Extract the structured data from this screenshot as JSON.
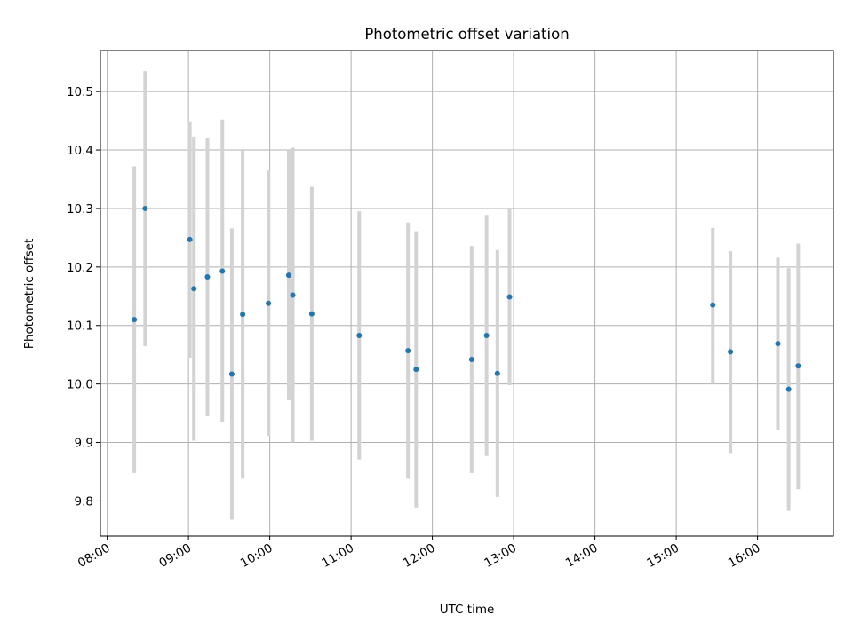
{
  "chart_data": {
    "type": "scatter",
    "title": "Photometric offset variation",
    "xlabel": "UTC time",
    "ylabel": "Photometric offset",
    "grid": true,
    "legend": "none",
    "x_ticks": [
      "08:00",
      "09:00",
      "10:00",
      "11:00",
      "12:00",
      "13:00",
      "14:00",
      "15:00",
      "16:00"
    ],
    "y_ticks": [
      "9.8",
      "9.9",
      "10.0",
      "10.1",
      "10.2",
      "10.3",
      "10.4",
      "10.5"
    ],
    "xlim": [
      "07:55",
      "16:56"
    ],
    "ylim": [
      9.74,
      10.57
    ],
    "colors": {
      "marker": "#1f77b4",
      "errorbar": "#d3d3d3",
      "grid": "#b0b0b0"
    },
    "points": [
      {
        "time": "08:20",
        "y": 10.11,
        "ylow": 9.848,
        "yhigh": 10.372
      },
      {
        "time": "08:28",
        "y": 10.3,
        "ylow": 10.065,
        "yhigh": 10.535
      },
      {
        "time": "09:01",
        "y": 10.247,
        "ylow": 10.045,
        "yhigh": 10.449
      },
      {
        "time": "09:04",
        "y": 10.163,
        "ylow": 9.903,
        "yhigh": 10.423
      },
      {
        "time": "09:14",
        "y": 10.183,
        "ylow": 9.945,
        "yhigh": 10.421
      },
      {
        "time": "09:25",
        "y": 10.193,
        "ylow": 9.934,
        "yhigh": 10.452
      },
      {
        "time": "09:32",
        "y": 10.017,
        "ylow": 9.768,
        "yhigh": 10.266
      },
      {
        "time": "09:40",
        "y": 10.119,
        "ylow": 9.838,
        "yhigh": 10.4
      },
      {
        "time": "09:59",
        "y": 10.138,
        "ylow": 9.911,
        "yhigh": 10.365
      },
      {
        "time": "10:14",
        "y": 10.186,
        "ylow": 9.972,
        "yhigh": 10.4
      },
      {
        "time": "10:17",
        "y": 10.152,
        "ylow": 9.9,
        "yhigh": 10.404
      },
      {
        "time": "10:31",
        "y": 10.12,
        "ylow": 9.903,
        "yhigh": 10.337
      },
      {
        "time": "11:06",
        "y": 10.083,
        "ylow": 9.871,
        "yhigh": 10.295
      },
      {
        "time": "11:42",
        "y": 10.057,
        "ylow": 9.838,
        "yhigh": 10.276
      },
      {
        "time": "11:48",
        "y": 10.025,
        "ylow": 9.789,
        "yhigh": 10.261
      },
      {
        "time": "12:29",
        "y": 10.042,
        "ylow": 9.848,
        "yhigh": 10.236
      },
      {
        "time": "12:40",
        "y": 10.083,
        "ylow": 9.877,
        "yhigh": 10.289
      },
      {
        "time": "12:48",
        "y": 10.018,
        "ylow": 9.807,
        "yhigh": 10.229
      },
      {
        "time": "12:57",
        "y": 10.149,
        "ylow": 9.998,
        "yhigh": 10.3
      },
      {
        "time": "15:27",
        "y": 10.135,
        "ylow": 10.0,
        "yhigh": 10.267
      },
      {
        "time": "15:40",
        "y": 10.055,
        "ylow": 9.882,
        "yhigh": 10.227
      },
      {
        "time": "16:15",
        "y": 10.069,
        "ylow": 9.922,
        "yhigh": 10.216
      },
      {
        "time": "16:23",
        "y": 9.991,
        "ylow": 9.783,
        "yhigh": 10.198
      },
      {
        "time": "16:30",
        "y": 10.031,
        "ylow": 9.82,
        "yhigh": 10.24
      }
    ]
  }
}
